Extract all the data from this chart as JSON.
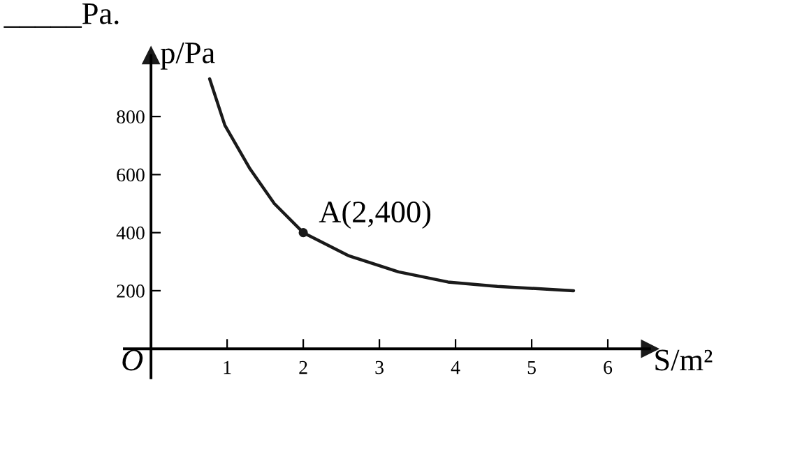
{
  "chart_data": {
    "type": "line",
    "xlabel": "S/m²",
    "ylabel": "p/Pa",
    "series": [
      {
        "color": "#1a1a1a",
        "x": [
          0.77,
          0.97,
          1.3,
          1.62,
          2,
          2.6,
          3.25,
          3.9,
          4.55,
          5.55
        ],
        "values": [
          930,
          770,
          620,
          500,
          400,
          320,
          265,
          230,
          215,
          200
        ]
      },
      {
        "type": "scatter",
        "color": "#1a1a1a",
        "x": [
          2
        ],
        "values": [
          400
        ]
      }
    ],
    "xlim": [
      -0.35,
      6.55
    ],
    "ylim": [
      -100,
      1010
    ],
    "xticks": [
      1,
      2,
      3,
      4,
      5,
      6
    ],
    "yticks": [
      200,
      400,
      600,
      800
    ],
    "annotations": [
      {
        "text": "A(2,400)",
        "x": 2,
        "y": 400
      },
      "O",
      "_____Pa."
    ],
    "grid": false,
    "legend": false
  }
}
